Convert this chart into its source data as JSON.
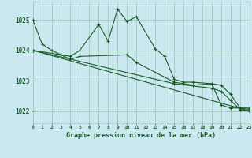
{
  "title": "Graphe pression niveau de la mer (hPa)",
  "background_color": "#cbe8f0",
  "grid_color": "#a0ccbb",
  "line_color": "#1a5c28",
  "xlim": [
    0,
    23
  ],
  "ylim": [
    1021.6,
    1025.6
  ],
  "yticks": [
    1022,
    1023,
    1024,
    1025
  ],
  "lines": [
    {
      "x": [
        0,
        1,
        2,
        3,
        4,
        5,
        7,
        8,
        9,
        10,
        11,
        13,
        14,
        15,
        16,
        17,
        19,
        20,
        21,
        22,
        23
      ],
      "y": [
        1025.0,
        1024.2,
        1024.0,
        1023.85,
        1023.8,
        1024.0,
        1024.85,
        1024.3,
        1025.35,
        1024.95,
        1025.1,
        1024.05,
        1023.8,
        1023.05,
        1022.95,
        1022.95,
        1022.9,
        1022.2,
        1022.1,
        1022.1,
        1022.05
      ]
    },
    {
      "x": [
        0,
        3,
        4,
        5,
        10,
        11,
        15,
        16,
        17,
        19,
        20,
        21,
        22,
        23
      ],
      "y": [
        1024.0,
        1023.85,
        1023.7,
        1023.8,
        1023.85,
        1023.6,
        1022.95,
        1022.9,
        1022.85,
        1022.9,
        1022.85,
        1022.55,
        1022.1,
        1022.1
      ]
    },
    {
      "x": [
        0,
        23
      ],
      "y": [
        1024.0,
        1022.0
      ]
    },
    {
      "x": [
        0,
        15,
        19,
        20,
        21,
        22,
        23
      ],
      "y": [
        1024.0,
        1022.9,
        1022.75,
        1022.65,
        1022.35,
        1022.05,
        1022.0
      ]
    }
  ]
}
